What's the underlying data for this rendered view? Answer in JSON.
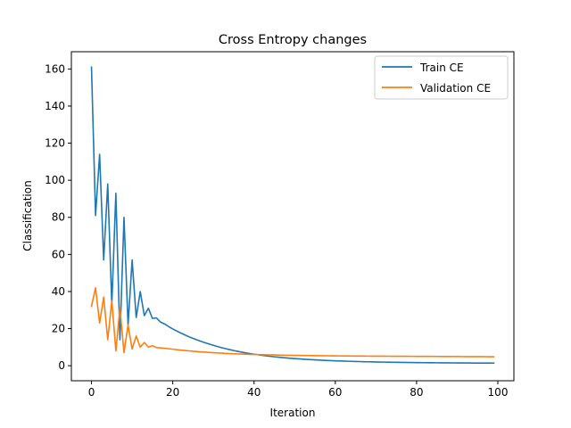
{
  "chart_data": {
    "type": "line",
    "title": "Cross Entropy changes",
    "xlabel": "Iteration",
    "ylabel": "Classification",
    "xlim": [
      -4.95,
      103.95
    ],
    "ylim": [
      -8.1,
      169.3
    ],
    "xticks": [
      0,
      20,
      40,
      60,
      80,
      100
    ],
    "yticks": [
      0,
      20,
      40,
      60,
      80,
      100,
      120,
      140,
      160
    ],
    "grid": false,
    "legend_position": "top-right",
    "x": [
      0,
      1,
      2,
      3,
      4,
      5,
      6,
      7,
      8,
      9,
      10,
      11,
      12,
      13,
      14,
      15,
      16,
      17,
      18,
      19,
      20,
      21,
      22,
      23,
      24,
      25,
      26,
      27,
      28,
      29,
      30,
      31,
      32,
      33,
      34,
      35,
      36,
      37,
      38,
      39,
      40,
      41,
      42,
      43,
      44,
      45,
      46,
      47,
      48,
      49,
      50,
      51,
      52,
      53,
      54,
      55,
      56,
      57,
      58,
      59,
      60,
      61,
      62,
      63,
      64,
      65,
      66,
      67,
      68,
      69,
      70,
      71,
      72,
      73,
      74,
      75,
      76,
      77,
      78,
      79,
      80,
      81,
      82,
      83,
      84,
      85,
      86,
      87,
      88,
      89,
      90,
      91,
      92,
      93,
      94,
      95,
      96,
      97,
      98,
      99
    ],
    "series": [
      {
        "name": "Train CE",
        "color": "#1f77b4",
        "values": [
          161,
          81,
          114,
          57,
          98,
          33,
          93,
          14,
          80,
          22,
          57,
          26,
          40,
          27,
          31,
          25.5,
          25.8,
          23.5,
          22.5,
          21.1,
          19.8,
          18.7,
          17.6,
          16.6,
          15.6,
          14.75,
          13.9,
          13.1,
          12.35,
          11.65,
          11,
          10.35,
          9.75,
          9.2,
          8.7,
          8.2,
          7.75,
          7.3,
          6.9,
          6.55,
          6.2,
          5.9,
          5.6,
          5.32,
          5.06,
          4.82,
          4.6,
          4.39,
          4.2,
          4.02,
          3.85,
          3.69,
          3.54,
          3.4,
          3.27,
          3.15,
          3.04,
          2.93,
          2.83,
          2.74,
          2.65,
          2.57,
          2.49,
          2.42,
          2.35,
          2.29,
          2.23,
          2.17,
          2.12,
          2.07,
          2.02,
          1.98,
          1.94,
          1.9,
          1.86,
          1.83,
          1.8,
          1.77,
          1.74,
          1.71,
          1.69,
          1.66,
          1.64,
          1.62,
          1.6,
          1.58,
          1.56,
          1.54,
          1.53,
          1.51,
          1.5,
          1.48,
          1.47,
          1.46,
          1.45,
          1.44,
          1.43,
          1.42,
          1.41,
          1.4
        ]
      },
      {
        "name": "Validation CE",
        "color": "#ff7f0e",
        "values": [
          32,
          42,
          23,
          37,
          14,
          35,
          8,
          31,
          7,
          22,
          9,
          16,
          10,
          12.5,
          10,
          10.8,
          9.8,
          9.6,
          9.4,
          9.15,
          8.9,
          8.65,
          8.4,
          8.2,
          8,
          7.8,
          7.62,
          7.45,
          7.3,
          7.15,
          7,
          6.88,
          6.76,
          6.65,
          6.55,
          6.45,
          6.36,
          6.28,
          6.2,
          6.13,
          6.06,
          6,
          5.94,
          5.89,
          5.84,
          5.79,
          5.74,
          5.7,
          5.66,
          5.62,
          5.58,
          5.55,
          5.52,
          5.49,
          5.46,
          5.43,
          5.41,
          5.38,
          5.36,
          5.34,
          5.32,
          5.3,
          5.28,
          5.26,
          5.24,
          5.22,
          5.21,
          5.19,
          5.18,
          5.16,
          5.15,
          5.14,
          5.13,
          5.12,
          5.11,
          5.1,
          5.09,
          5.08,
          5.07,
          5.06,
          5.05,
          5.04,
          5.03,
          5.02,
          5.01,
          5,
          4.99,
          4.98,
          4.97,
          4.96,
          4.95,
          4.94,
          4.93,
          4.92,
          4.91,
          4.9,
          4.89,
          4.88,
          4.87,
          4.86
        ]
      }
    ]
  }
}
